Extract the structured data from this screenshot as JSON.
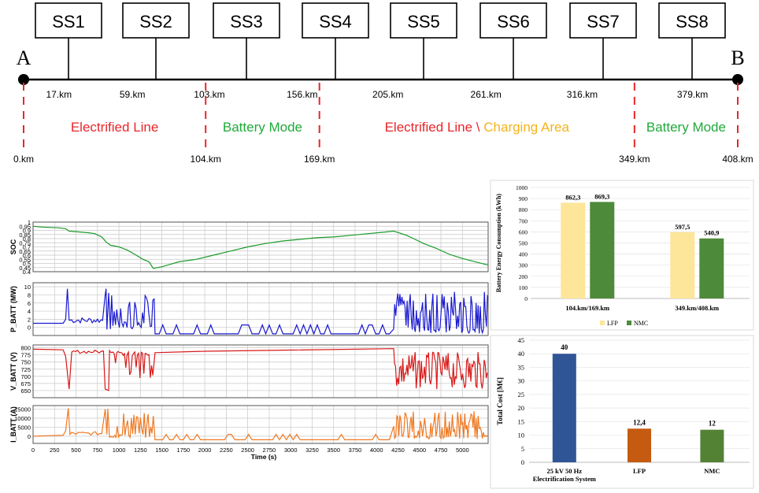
{
  "route": {
    "start_label": "A",
    "end_label": "B",
    "substations": [
      "SS1",
      "SS2",
      "SS3",
      "SS4",
      "SS5",
      "SS6",
      "SS7",
      "SS8"
    ],
    "substation_km": [
      17,
      59,
      103,
      156,
      205,
      261,
      316,
      379
    ],
    "substation_km_labels": [
      "17.km",
      "59.km",
      "103.km",
      "156.km",
      "205.km",
      "261.km",
      "316.km",
      "379.km"
    ],
    "total_km": 408,
    "boundaries": [
      {
        "km": 0,
        "label": "0.km"
      },
      {
        "km": 104,
        "label": "104.km"
      },
      {
        "km": 169,
        "label": "169.km"
      },
      {
        "km": 349,
        "label": "349.km"
      },
      {
        "km": 408,
        "label": "408.km"
      }
    ],
    "zones": [
      {
        "text": "Electrified Line",
        "color": "#e8262b",
        "from_km": 0,
        "to_km": 104
      },
      {
        "text": "Battery Mode",
        "color": "#1faa3a",
        "from_km": 104,
        "to_km": 169
      },
      {
        "text": "Electrified Line \\",
        "text2": " Charging Area",
        "color": "#e8262b",
        "color2": "#f5b319",
        "from_km": 169,
        "to_km": 349
      },
      {
        "text": "Battery Mode",
        "color": "#1faa3a",
        "from_km": 349,
        "to_km": 408
      }
    ]
  },
  "chart_data": [
    {
      "type": "line",
      "title": "",
      "xlabel": "Time (s)",
      "xlim": [
        0,
        5300
      ],
      "xticks": [
        0,
        250,
        500,
        750,
        1000,
        1250,
        1500,
        1750,
        2000,
        2250,
        2500,
        2750,
        3000,
        3250,
        3500,
        3750,
        4000,
        4250,
        4500,
        4750,
        5000
      ],
      "panels": [
        {
          "ylabel": "SOC",
          "color": "#1a9a2a",
          "ylim": [
            0.4,
            1.0
          ],
          "yticks": [
            "0.4",
            "0.45",
            "0.5",
            "0.55",
            "0.6",
            "0.65",
            "0.7",
            "0.75",
            "0.8",
            "0.85",
            "0.9",
            "0.95",
            "1"
          ],
          "x": [
            0,
            100,
            200,
            300,
            380,
            420,
            550,
            650,
            720,
            800,
            850,
            900,
            1000,
            1100,
            1200,
            1280,
            1350,
            1400,
            1500,
            1600,
            1700,
            1900,
            2100,
            2300,
            2500,
            2700,
            2900,
            3100,
            3300,
            3500,
            3700,
            3900,
            4100,
            4200,
            4260,
            4350,
            4450,
            4550,
            4700,
            4850,
            5000,
            5150,
            5300
          ],
          "y": [
            0.95,
            0.94,
            0.935,
            0.93,
            0.92,
            0.89,
            0.88,
            0.87,
            0.86,
            0.82,
            0.76,
            0.72,
            0.7,
            0.66,
            0.6,
            0.55,
            0.52,
            0.44,
            0.46,
            0.49,
            0.52,
            0.55,
            0.6,
            0.65,
            0.7,
            0.74,
            0.77,
            0.79,
            0.81,
            0.82,
            0.84,
            0.86,
            0.88,
            0.89,
            0.87,
            0.84,
            0.79,
            0.74,
            0.68,
            0.61,
            0.56,
            0.52,
            0.48
          ]
        },
        {
          "ylabel": "P_BATT (MW)",
          "color": "#1a1ad0",
          "ylim": [
            -2,
            11
          ],
          "yticks": [
            "0",
            "2",
            "4",
            "6",
            "8",
            "10"
          ]
        },
        {
          "ylabel": "V_BATT (V)",
          "color": "#d81818",
          "ylim": [
            625,
            810
          ],
          "yticks": [
            "650",
            "675",
            "700",
            "725",
            "750",
            "775",
            "800"
          ]
        },
        {
          "ylabel": "I_BATT (A)",
          "color": "#f07820",
          "ylim": [
            -4000,
            17000
          ],
          "yticks": [
            "0",
            "5000",
            "10000",
            "15000"
          ]
        }
      ]
    },
    {
      "type": "bar",
      "ylabel": "Battery Energy Consumption (kWh)",
      "ylim": [
        0,
        1000
      ],
      "yticks": [
        "0",
        "100",
        "200",
        "300",
        "400",
        "500",
        "600",
        "700",
        "800",
        "900",
        "1000"
      ],
      "categories": [
        "104.km/169.km",
        "349.km/408.km"
      ],
      "series": [
        {
          "name": "LFP",
          "color": "#fde59a",
          "values": [
            862.3,
            597.5
          ],
          "labels": [
            "862,3",
            "597,5"
          ]
        },
        {
          "name": "NMC",
          "color": "#4d8a3a",
          "values": [
            869.3,
            540.9
          ],
          "labels": [
            "869,3",
            "540,9"
          ]
        }
      ]
    },
    {
      "type": "bar",
      "ylabel": "Total Cost [M€]",
      "ylim": [
        0,
        45
      ],
      "yticks": [
        "0",
        "5",
        "10",
        "15",
        "20",
        "25",
        "30",
        "35",
        "40",
        "45"
      ],
      "categories": [
        "25 kV 50 Hz\nElectrification System",
        "LFP",
        "NMC"
      ],
      "values": [
        40,
        12.4,
        12
      ],
      "labels": [
        "40",
        "12,4",
        "12"
      ],
      "colors": [
        "#2f5597",
        "#c55a11",
        "#548235"
      ]
    }
  ]
}
